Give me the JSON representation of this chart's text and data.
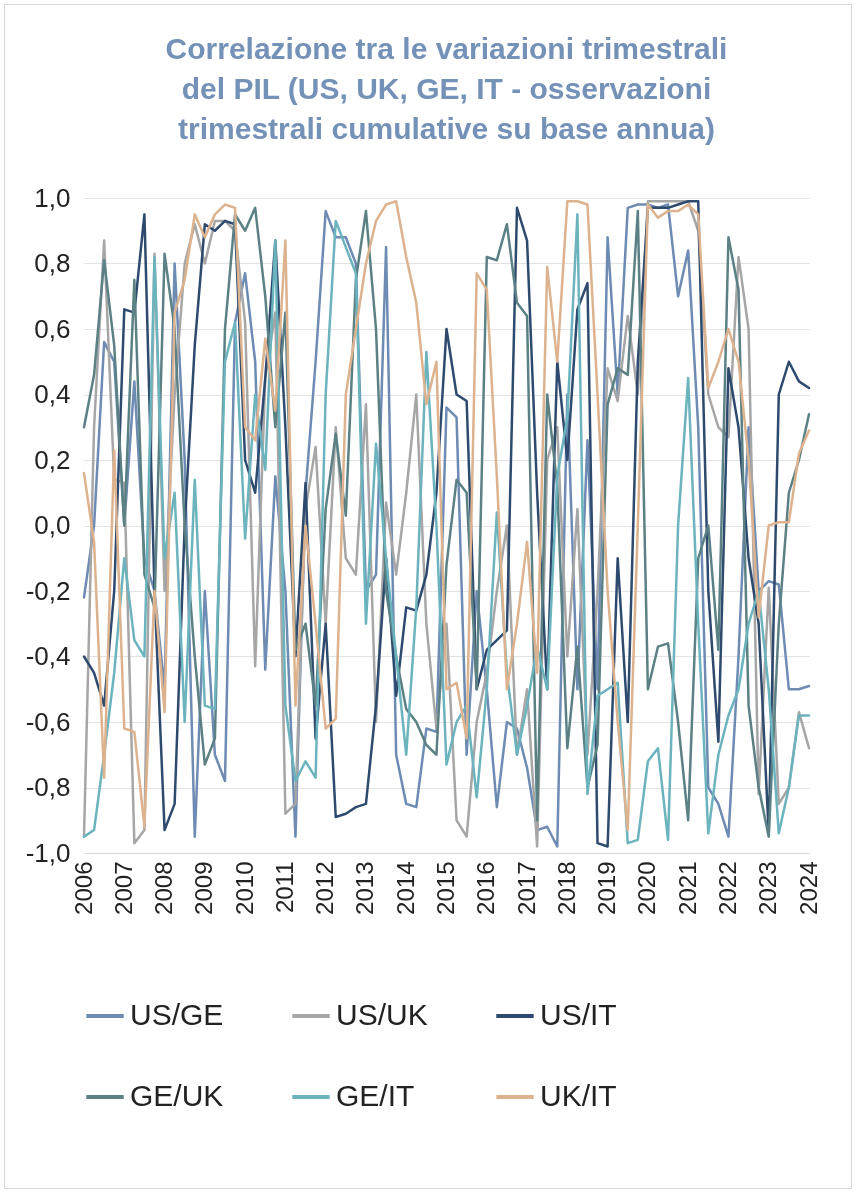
{
  "chart_data": {
    "type": "line",
    "title": "Correlazione tra le variazioni trimestrali del PIL (US, UK, GE, IT - osservazioni trimestrali cumulative su base annua)",
    "categories": [
      "2006",
      null,
      null,
      null,
      "2007",
      null,
      null,
      null,
      "2008",
      null,
      null,
      null,
      "2009",
      null,
      null,
      null,
      "2010",
      null,
      null,
      null,
      "2011",
      null,
      null,
      null,
      "2012",
      null,
      null,
      null,
      "2013",
      null,
      null,
      null,
      "2014",
      null,
      null,
      null,
      "2015",
      null,
      null,
      null,
      "2016",
      null,
      null,
      null,
      "2017",
      null,
      null,
      null,
      "2018",
      null,
      null,
      null,
      "2019",
      null,
      null,
      null,
      "2020",
      null,
      null,
      null,
      "2021",
      null,
      null,
      null,
      "2022",
      null,
      null,
      null,
      "2023",
      null,
      null,
      null,
      "2024"
    ],
    "ylim": [
      -1,
      1
    ],
    "yticks": [
      {
        "value": -1,
        "label": "-1,0"
      },
      {
        "value": -0.8,
        "label": "-0,8"
      },
      {
        "value": -0.6,
        "label": "-0,6"
      },
      {
        "value": -0.4,
        "label": "-0,4"
      },
      {
        "value": -0.2,
        "label": "-0,2"
      },
      {
        "value": 0,
        "label": "0,0"
      },
      {
        "value": 0.2,
        "label": "0,2"
      },
      {
        "value": 0.4,
        "label": "0,4"
      },
      {
        "value": 0.6,
        "label": "0,6"
      },
      {
        "value": 0.8,
        "label": "0,8"
      },
      {
        "value": 1,
        "label": "1,0"
      }
    ],
    "grid": "y",
    "legend": "bottom",
    "marker": "none",
    "line_style": "solid",
    "series": [
      {
        "name": "US/GE",
        "color": "#6d8bb3",
        "values": [
          -0.22,
          0.0,
          0.56,
          0.5,
          0.0,
          0.44,
          -0.1,
          -0.2,
          -0.5,
          0.8,
          0.2,
          -0.95,
          -0.2,
          -0.7,
          -0.78,
          0.62,
          0.77,
          0.5,
          -0.44,
          0.15,
          -0.2,
          -0.95,
          0.1,
          0.5,
          0.96,
          0.88,
          0.88,
          0.8,
          -0.2,
          -0.15,
          0.85,
          -0.7,
          -0.85,
          -0.86,
          -0.62,
          -0.63,
          0.36,
          0.33,
          -0.7,
          -0.2,
          -0.5,
          -0.86,
          -0.6,
          -0.62,
          -0.74,
          -0.93,
          -0.92,
          -0.98,
          0.4,
          -0.5,
          0.26,
          -0.5,
          0.88,
          0.4,
          0.97,
          0.98,
          0.98,
          0.97,
          0.98,
          0.7,
          0.84,
          0.3,
          -0.8,
          -0.85,
          -0.95,
          -0.4,
          0.3,
          -0.2,
          -0.17,
          -0.18,
          -0.5,
          -0.5,
          -0.49
        ]
      },
      {
        "name": "US/UK",
        "color": "#a6a6a6",
        "values": [
          -0.95,
          0.3,
          0.87,
          0.14,
          0.13,
          -0.97,
          -0.93,
          0.83,
          -0.2,
          0.4,
          0.8,
          0.92,
          0.8,
          0.93,
          0.93,
          0.9,
          0.62,
          -0.43,
          0.45,
          0.65,
          -0.88,
          -0.85,
          0.05,
          0.24,
          -0.3,
          0.3,
          -0.1,
          -0.15,
          0.37,
          -0.6,
          0.07,
          -0.15,
          0.1,
          0.4,
          -0.3,
          -0.62,
          -0.3,
          -0.9,
          -0.95,
          -0.6,
          -0.45,
          -0.2,
          0.0,
          -0.7,
          -0.5,
          -0.98,
          0.2,
          0.3,
          -0.4,
          0.05,
          -0.7,
          -0.2,
          0.48,
          0.38,
          0.64,
          0.4,
          0.99,
          0.99,
          0.99,
          0.99,
          0.99,
          0.9,
          0.4,
          0.3,
          0.27,
          0.82,
          0.6,
          -0.82,
          -0.19,
          -0.85,
          -0.8,
          -0.57,
          -0.68
        ]
      },
      {
        "name": "US/IT",
        "color": "#2e4a6e",
        "values": [
          -0.4,
          -0.45,
          -0.55,
          -0.2,
          0.66,
          0.65,
          0.95,
          -0.2,
          -0.93,
          -0.85,
          0.0,
          0.55,
          0.92,
          0.9,
          0.93,
          0.92,
          0.2,
          0.1,
          0.45,
          0.87,
          0.3,
          -0.4,
          0.13,
          -0.65,
          -0.3,
          -0.89,
          -0.88,
          -0.86,
          -0.85,
          -0.55,
          -0.1,
          -0.52,
          -0.25,
          -0.26,
          -0.15,
          0.1,
          0.6,
          0.4,
          0.38,
          -0.5,
          -0.38,
          -0.35,
          -0.32,
          0.97,
          0.87,
          0.1,
          -0.5,
          0.5,
          0.2,
          0.66,
          0.74,
          -0.97,
          -0.98,
          -0.1,
          -0.6,
          0.5,
          0.97,
          0.97,
          0.97,
          0.98,
          0.99,
          0.99,
          -0.2,
          -0.66,
          0.48,
          0.3,
          -0.1,
          -0.3,
          -0.94,
          0.4,
          0.5,
          0.44,
          0.42
        ]
      },
      {
        "name": "GE/UK",
        "color": "#5b8185",
        "values": [
          0.3,
          0.46,
          0.81,
          0.55,
          0.0,
          0.75,
          -0.15,
          -0.25,
          0.83,
          0.6,
          0.0,
          -0.4,
          -0.73,
          -0.65,
          0.6,
          0.95,
          0.9,
          0.97,
          0.7,
          0.3,
          0.65,
          -0.38,
          -0.3,
          -0.55,
          0.05,
          0.28,
          0.03,
          0.75,
          0.96,
          0.6,
          -0.2,
          -0.4,
          -0.56,
          -0.6,
          -0.67,
          -0.7,
          -0.12,
          0.14,
          0.1,
          -0.5,
          0.82,
          0.81,
          0.92,
          0.68,
          0.64,
          -0.9,
          0.4,
          0.12,
          -0.68,
          -0.37,
          -0.8,
          -0.67,
          0.37,
          0.48,
          0.46,
          0.96,
          -0.5,
          -0.37,
          -0.36,
          -0.6,
          -0.9,
          -0.1,
          0.0,
          -0.38,
          0.88,
          0.72,
          -0.55,
          -0.8,
          -0.95,
          -0.3,
          0.1,
          0.2,
          0.34
        ]
      },
      {
        "name": "GE/IT",
        "color": "#6bb3bd",
        "values": [
          -0.95,
          -0.93,
          -0.7,
          -0.45,
          -0.1,
          -0.35,
          -0.4,
          0.82,
          -0.1,
          0.1,
          -0.6,
          0.14,
          -0.55,
          -0.56,
          0.5,
          0.62,
          -0.04,
          0.4,
          0.17,
          0.87,
          -0.55,
          -0.78,
          -0.72,
          -0.77,
          0.4,
          0.93,
          0.85,
          0.77,
          -0.3,
          0.25,
          -0.1,
          -0.4,
          -0.7,
          -0.25,
          0.53,
          0.0,
          -0.73,
          -0.6,
          -0.55,
          -0.83,
          -0.5,
          0.04,
          -0.45,
          -0.7,
          -0.55,
          -0.37,
          -0.5,
          0.15,
          0.33,
          0.95,
          -0.82,
          -0.52,
          -0.5,
          -0.48,
          -0.97,
          -0.96,
          -0.72,
          -0.68,
          -0.96,
          0.0,
          0.45,
          -0.3,
          -0.94,
          -0.7,
          -0.58,
          -0.5,
          -0.3,
          -0.2,
          -0.5,
          -0.94,
          -0.8,
          -0.58,
          -0.58
        ]
      },
      {
        "name": "UK/IT",
        "color": "#dcb38e",
        "values": [
          0.16,
          -0.05,
          -0.77,
          0.23,
          -0.62,
          -0.63,
          -0.92,
          -0.2,
          -0.57,
          0.65,
          0.75,
          0.95,
          0.88,
          0.95,
          0.98,
          0.97,
          0.3,
          0.26,
          0.57,
          0.35,
          0.87,
          -0.55,
          0.0,
          -0.3,
          -0.62,
          -0.59,
          0.4,
          0.6,
          0.8,
          0.93,
          0.98,
          0.99,
          0.82,
          0.68,
          0.37,
          0.5,
          -0.5,
          -0.48,
          -0.65,
          0.77,
          0.72,
          0.15,
          -0.5,
          -0.3,
          -0.05,
          -0.45,
          0.79,
          0.5,
          0.99,
          0.99,
          0.98,
          0.4,
          -0.2,
          -0.6,
          -0.93,
          0.0,
          0.98,
          0.94,
          0.96,
          0.96,
          0.98,
          0.95,
          0.42,
          0.5,
          0.6,
          0.5,
          0.2,
          -0.28,
          0.0,
          0.01,
          0.01,
          0.22,
          0.29
        ]
      }
    ]
  }
}
